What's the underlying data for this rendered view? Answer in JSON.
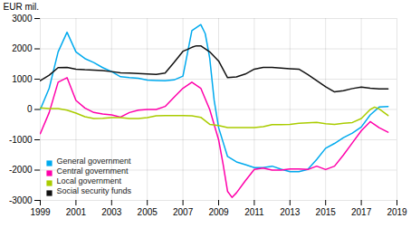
{
  "chart_data": {
    "type": "line",
    "ylabel": "EUR mil.",
    "xlim": [
      1999,
      2019
    ],
    "ylim": [
      -3000,
      3000
    ],
    "xticks": [
      1999,
      2001,
      2003,
      2005,
      2007,
      2009,
      2011,
      2013,
      2015,
      2017,
      2019
    ],
    "yticks": [
      -3000,
      -2000,
      -1000,
      0,
      1000,
      2000,
      3000
    ],
    "grid": true,
    "legend": "lower left",
    "series": [
      {
        "name": "General government",
        "color": "#00aaee",
        "x": [
          1999,
          1999.5,
          2000,
          2000.5,
          2001,
          2001.5,
          2002,
          2002.5,
          2003,
          2003.5,
          2004,
          2004.5,
          2005,
          2005.5,
          2006,
          2006.5,
          2007,
          2007.5,
          2008,
          2008.25,
          2008.5,
          2008.75,
          2009,
          2009.5,
          2010,
          2010.5,
          2011,
          2011.5,
          2012,
          2012.5,
          2013,
          2013.5,
          2014,
          2014.5,
          2015,
          2015.5,
          2016,
          2016.5,
          2017,
          2017.5,
          2018,
          2018.5
        ],
        "values": [
          0,
          700,
          1900,
          2550,
          1900,
          1680,
          1550,
          1380,
          1250,
          1080,
          1050,
          1030,
          970,
          955,
          945,
          975,
          1100,
          2600,
          2800,
          2500,
          1700,
          300,
          -600,
          -1550,
          -1730,
          -1820,
          -1920,
          -1920,
          -1870,
          -1970,
          -2050,
          -2050,
          -1980,
          -1650,
          -1280,
          -1120,
          -930,
          -780,
          -580,
          -180,
          80,
          100
        ]
      },
      {
        "name": "Central government",
        "color": "#ff00aa",
        "x": [
          1999,
          1999.5,
          2000,
          2000.5,
          2001,
          2001.5,
          2002,
          2002.5,
          2003,
          2003.5,
          2004,
          2004.5,
          2005,
          2005.5,
          2006,
          2006.5,
          2007,
          2007.5,
          2008,
          2008.5,
          2009,
          2009.25,
          2009.5,
          2009.75,
          2010,
          2010.5,
          2011,
          2011.5,
          2012,
          2012.5,
          2013,
          2013.5,
          2014,
          2014.5,
          2015,
          2015.5,
          2016,
          2016.5,
          2017,
          2017.5,
          2018,
          2018.5
        ],
        "values": [
          -800,
          -100,
          900,
          1050,
          300,
          50,
          -100,
          -150,
          -180,
          -250,
          -100,
          -20,
          0,
          0,
          100,
          400,
          700,
          900,
          700,
          0,
          -1000,
          -1800,
          -2700,
          -2900,
          -2750,
          -2350,
          -1980,
          -1930,
          -2000,
          -2000,
          -1960,
          -1960,
          -1980,
          -1870,
          -1980,
          -1870,
          -1500,
          -1100,
          -700,
          -400,
          -600,
          -750
        ]
      },
      {
        "name": "Local government",
        "color": "#aacc00",
        "x": [
          1999,
          1999.5,
          2000,
          2000.5,
          2001,
          2001.5,
          2002,
          2002.5,
          2003,
          2003.5,
          2004,
          2004.5,
          2005,
          2005.5,
          2006,
          2006.5,
          2007,
          2007.5,
          2008,
          2008.5,
          2009,
          2009.5,
          2010,
          2010.5,
          2011,
          2011.5,
          2012,
          2012.5,
          2013,
          2013.5,
          2014,
          2014.5,
          2015,
          2015.5,
          2016,
          2016.5,
          2017,
          2017.25,
          2017.5,
          2017.75,
          2018,
          2018.5
        ],
        "values": [
          50,
          30,
          30,
          -20,
          -120,
          -240,
          -300,
          -290,
          -265,
          -270,
          -300,
          -295,
          -270,
          -210,
          -200,
          -200,
          -200,
          -210,
          -260,
          -490,
          -530,
          -600,
          -600,
          -600,
          -600,
          -570,
          -500,
          -500,
          -490,
          -455,
          -440,
          -425,
          -470,
          -495,
          -455,
          -430,
          -300,
          -150,
          0,
          80,
          20,
          -200
        ]
      },
      {
        "name": "Social security funds",
        "color": "#111111",
        "x": [
          1999,
          1999.5,
          2000,
          2000.5,
          2001,
          2001.5,
          2002,
          2002.5,
          2003,
          2003.5,
          2004,
          2004.5,
          2005,
          2005.5,
          2006,
          2006.5,
          2007,
          2007.25,
          2007.5,
          2007.75,
          2008,
          2008.5,
          2009,
          2009.5,
          2010,
          2010.5,
          2011,
          2011.5,
          2012,
          2012.5,
          2013,
          2013.5,
          2014,
          2014.5,
          2015,
          2015.5,
          2016,
          2016.5,
          2017,
          2017.5,
          2018,
          2018.5
        ],
        "values": [
          950,
          1130,
          1380,
          1390,
          1330,
          1310,
          1300,
          1280,
          1250,
          1210,
          1200,
          1185,
          1175,
          1158,
          1200,
          1550,
          1920,
          1980,
          2050,
          2100,
          2100,
          1900,
          1600,
          1050,
          1075,
          1170,
          1330,
          1385,
          1385,
          1365,
          1345,
          1330,
          1150,
          950,
          750,
          580,
          620,
          690,
          740,
          700,
          680,
          680
        ]
      }
    ]
  }
}
